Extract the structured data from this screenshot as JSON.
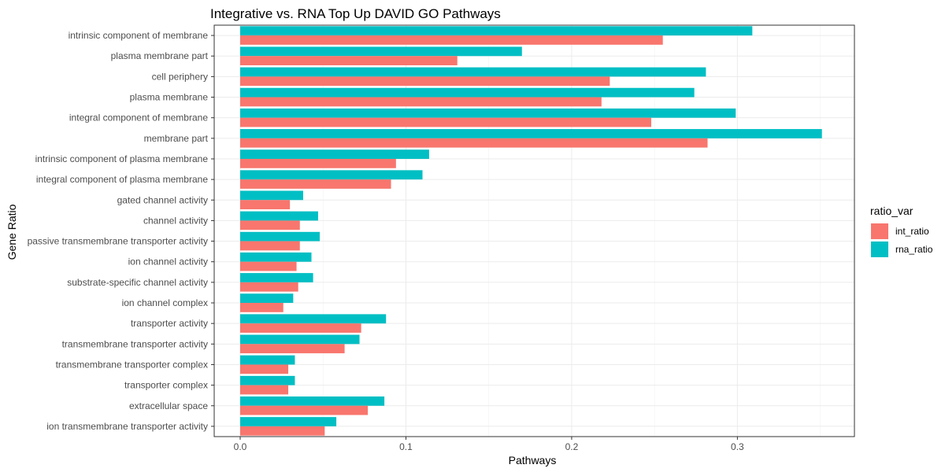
{
  "chart_data": {
    "type": "bar",
    "orientation": "horizontal",
    "title": "Integrative vs. RNA Top Up DAVID GO Pathways",
    "xlabel": "Pathways",
    "ylabel": "Gene Ratio",
    "xlim": [
      0,
      0.35
    ],
    "xticks": [
      0.0,
      0.1,
      0.2,
      0.3
    ],
    "xtick_labels": [
      "0.0",
      "0.1",
      "0.2",
      "0.3"
    ],
    "grid": true,
    "legend_position": "right",
    "legend_title": "ratio_var",
    "categories": [
      "intrinsic component of membrane",
      "plasma membrane part",
      "cell periphery",
      "plasma membrane",
      "integral component of membrane",
      "membrane part",
      "intrinsic component of plasma membrane",
      "integral component of plasma membrane",
      "gated channel activity",
      "channel activity",
      "passive transmembrane transporter activity",
      "ion channel activity",
      "substrate-specific channel activity",
      "ion channel complex",
      "transporter activity",
      "transmembrane transporter activity",
      "transmembrane transporter complex",
      "transporter complex",
      "extracellular space",
      "ion transmembrane transporter activity"
    ],
    "series": [
      {
        "name": "int_ratio",
        "color": "#F8766D",
        "values": [
          0.255,
          0.131,
          0.223,
          0.218,
          0.248,
          0.282,
          0.094,
          0.091,
          0.03,
          0.036,
          0.036,
          0.034,
          0.035,
          0.026,
          0.073,
          0.063,
          0.029,
          0.029,
          0.077,
          0.051
        ]
      },
      {
        "name": "rna_ratio",
        "color": "#00BFC4",
        "values": [
          0.309,
          0.17,
          0.281,
          0.274,
          0.299,
          0.351,
          0.114,
          0.11,
          0.038,
          0.047,
          0.048,
          0.043,
          0.044,
          0.032,
          0.088,
          0.072,
          0.033,
          0.033,
          0.087,
          0.058
        ]
      }
    ]
  }
}
